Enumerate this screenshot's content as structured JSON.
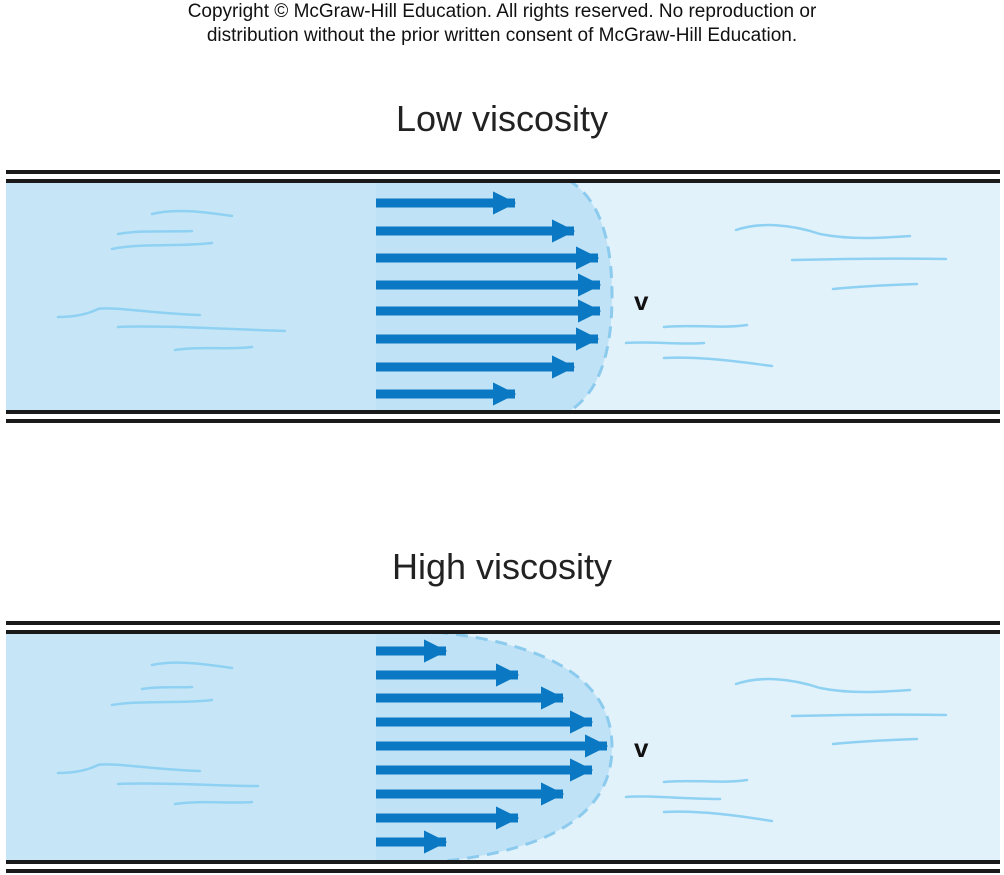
{
  "copyright": {
    "line1": "Copyright © McGraw-Hill Education.  All rights reserved. No reproduction or",
    "line2": "distribution without the prior written consent of McGraw-Hill Education."
  },
  "panels": [
    {
      "title": "Low viscosity",
      "velocity_label": "v",
      "arrow_count": 8
    },
    {
      "title": "High viscosity",
      "velocity_label": "v",
      "arrow_count": 9
    }
  ],
  "colors": {
    "fluid_dark": "#c6e6f7",
    "fluid_light": "#e2f2fb",
    "profile_fill": "#bfe2f6",
    "arrow": "#0a78c2",
    "dashed_edge": "#8ccbee",
    "streak": "#8fd1f2",
    "wall": "#1a1a1a"
  }
}
